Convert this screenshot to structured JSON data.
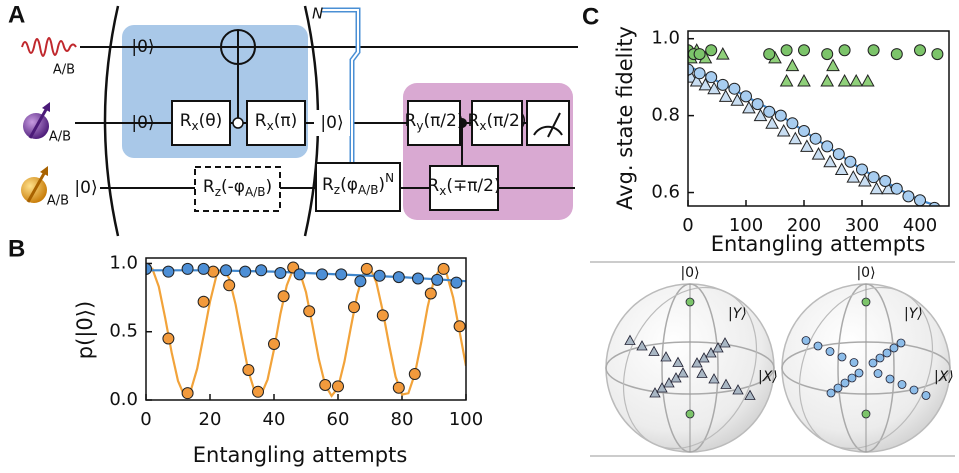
{
  "panel_labels": [
    "A",
    "B",
    "C"
  ],
  "circuit": {
    "qubit_labels": [
      "A/B",
      "A/B",
      "A/B"
    ],
    "states": [
      "|0⟩",
      "|0⟩",
      "|0⟩",
      "|0⟩"
    ],
    "repeat": "N",
    "gates": [
      {
        "op": "R",
        "axis": "x",
        "arg": "(θ)"
      },
      {
        "op": "R",
        "axis": "x",
        "arg": "(π)"
      },
      {
        "op": "R",
        "axis": "z",
        "arg": "(-φ",
        "phase_sub": "A/B",
        "tail": ")"
      },
      {
        "op": "R",
        "axis": "z",
        "arg": "(φ",
        "phase_sub": "A/B",
        "tail": ")",
        "power": "N"
      },
      {
        "op": "R",
        "axis": "y",
        "arg": "(π/2)"
      },
      {
        "op": "R",
        "axis": "x",
        "arg": "(π/2)"
      },
      {
        "op": "R",
        "axis": "x",
        "arg": "(∓π/2)"
      }
    ]
  },
  "chart_data": [
    {
      "type": "scatter",
      "xlabel": "Entangling attempts",
      "ylabel": "p(|0⟩)",
      "xlim": [
        0,
        100
      ],
      "ylim": [
        0,
        1.04
      ],
      "xticks": [
        0,
        20,
        40,
        60,
        80,
        100
      ],
      "yticks": [
        {
          "value": 0,
          "label": "0.0"
        },
        0.5,
        {
          "value": 1,
          "label": "1.0"
        }
      ],
      "series": [
        {
          "style": "line",
          "color": "#f2a33a",
          "x": [
            0,
            2,
            4,
            6,
            8,
            10,
            12,
            14,
            16,
            18,
            20,
            22,
            24,
            26,
            28,
            30,
            32,
            34,
            36,
            38,
            40,
            42,
            44,
            46,
            48,
            50,
            52,
            54,
            56,
            58,
            60,
            62,
            64,
            66,
            68,
            70,
            72,
            74,
            76,
            78,
            80,
            82,
            84,
            86,
            88,
            90,
            92,
            94,
            96,
            98,
            100
          ],
          "values": [
            0.95,
            0.96,
            0.83,
            0.6,
            0.35,
            0.14,
            0.03,
            0.07,
            0.23,
            0.47,
            0.72,
            0.91,
            0.97,
            0.89,
            0.7,
            0.45,
            0.21,
            0.06,
            0.04,
            0.15,
            0.37,
            0.63,
            0.84,
            0.96,
            0.94,
            0.79,
            0.55,
            0.3,
            0.11,
            0.03,
            0.09,
            0.28,
            0.53,
            0.77,
            0.93,
            0.97,
            0.86,
            0.65,
            0.4,
            0.17,
            0.04,
            0.05,
            0.19,
            0.42,
            0.68,
            0.88,
            0.97,
            0.92,
            0.75,
            0.5,
            0.25
          ]
        },
        {
          "style": "line",
          "color": "#3f86cc",
          "x": [
            0,
            20,
            40,
            60,
            80,
            100
          ],
          "values": [
            0.95,
            0.95,
            0.94,
            0.92,
            0.9,
            0.87
          ]
        },
        {
          "style": "markers",
          "marker": "circle",
          "color": "#f29a3c",
          "x": [
            0,
            7,
            13,
            18,
            21,
            26,
            32,
            35,
            40,
            43,
            46,
            51,
            56,
            60,
            65,
            69,
            74,
            79,
            84,
            89,
            93,
            98
          ],
          "values": [
            0.96,
            0.45,
            0.05,
            0.72,
            0.94,
            0.84,
            0.22,
            0.06,
            0.41,
            0.76,
            0.97,
            0.65,
            0.11,
            0.1,
            0.68,
            0.96,
            0.62,
            0.09,
            0.19,
            0.78,
            0.96,
            0.54
          ]
        },
        {
          "style": "markers",
          "marker": "circle",
          "color": "#4d8fd6",
          "x": [
            0,
            7,
            13,
            18,
            25,
            31,
            36,
            42,
            48,
            55,
            61,
            67,
            73,
            79,
            85,
            91,
            97
          ],
          "values": [
            0.96,
            0.94,
            0.96,
            0.96,
            0.95,
            0.94,
            0.95,
            0.93,
            0.92,
            0.92,
            0.92,
            0.87,
            0.91,
            0.9,
            0.89,
            0.88,
            0.86
          ]
        }
      ]
    },
    {
      "type": "scatter",
      "xlabel": "Entangling attempts",
      "ylabel": "Avg. state fidelity",
      "xlim": [
        0,
        450
      ],
      "ylim": [
        0.565,
        1.02
      ],
      "xticks": [
        0,
        100,
        200,
        300,
        400
      ],
      "yticks": [
        0.6,
        0.8,
        {
          "value": 1,
          "label": "1.0"
        }
      ],
      "series": [
        {
          "style": "line",
          "color": "#3f86cc",
          "x": [
            0,
            50,
            100,
            150,
            200,
            250,
            300,
            350,
            400,
            440
          ],
          "values": [
            0.93,
            0.89,
            0.85,
            0.81,
            0.76,
            0.71,
            0.66,
            0.62,
            0.58,
            0.56
          ]
        },
        {
          "style": "markers",
          "marker": "triangle",
          "color": "#c9def2",
          "x": [
            5,
            15,
            30,
            45,
            65,
            85,
            105,
            125,
            145,
            165,
            185,
            205,
            225,
            245,
            265,
            285,
            305,
            325,
            345
          ],
          "values": [
            0.9,
            0.89,
            0.88,
            0.87,
            0.85,
            0.84,
            0.82,
            0.8,
            0.78,
            0.76,
            0.74,
            0.72,
            0.7,
            0.68,
            0.66,
            0.64,
            0.63,
            0.61,
            0.61
          ]
        },
        {
          "style": "markers",
          "marker": "circle",
          "color": "#a8cdf0",
          "x": [
            0,
            20,
            40,
            60,
            80,
            100,
            120,
            140,
            160,
            180,
            200,
            220,
            240,
            260,
            280,
            300,
            320,
            340,
            360,
            380,
            400,
            425
          ],
          "values": [
            0.92,
            0.91,
            0.9,
            0.88,
            0.87,
            0.85,
            0.83,
            0.81,
            0.8,
            0.78,
            0.76,
            0.74,
            0.72,
            0.7,
            0.68,
            0.66,
            0.64,
            0.63,
            0.61,
            0.59,
            0.58,
            0.56
          ]
        },
        {
          "style": "markers",
          "marker": "triangle",
          "color": "#8fd07a",
          "x": [
            5,
            15,
            30,
            60,
            150,
            170,
            180,
            200,
            240,
            250,
            270,
            290,
            310
          ],
          "values": [
            0.95,
            0.97,
            0.95,
            0.96,
            0.95,
            0.89,
            0.93,
            0.89,
            0.89,
            0.93,
            0.89,
            0.89,
            0.89
          ]
        },
        {
          "style": "markers",
          "marker": "circle",
          "color": "#7cc46a",
          "x": [
            0,
            10,
            20,
            40,
            140,
            170,
            200,
            240,
            270,
            320,
            360,
            400,
            430
          ],
          "values": [
            0.97,
            0.96,
            0.96,
            0.97,
            0.96,
            0.97,
            0.97,
            0.96,
            0.97,
            0.97,
            0.96,
            0.97,
            0.96
          ]
        }
      ]
    }
  ],
  "bloch": {
    "labels": [
      "|0⟩",
      "|Y⟩",
      "|X⟩",
      "|0⟩",
      "|Y⟩",
      "|X⟩"
    ]
  }
}
